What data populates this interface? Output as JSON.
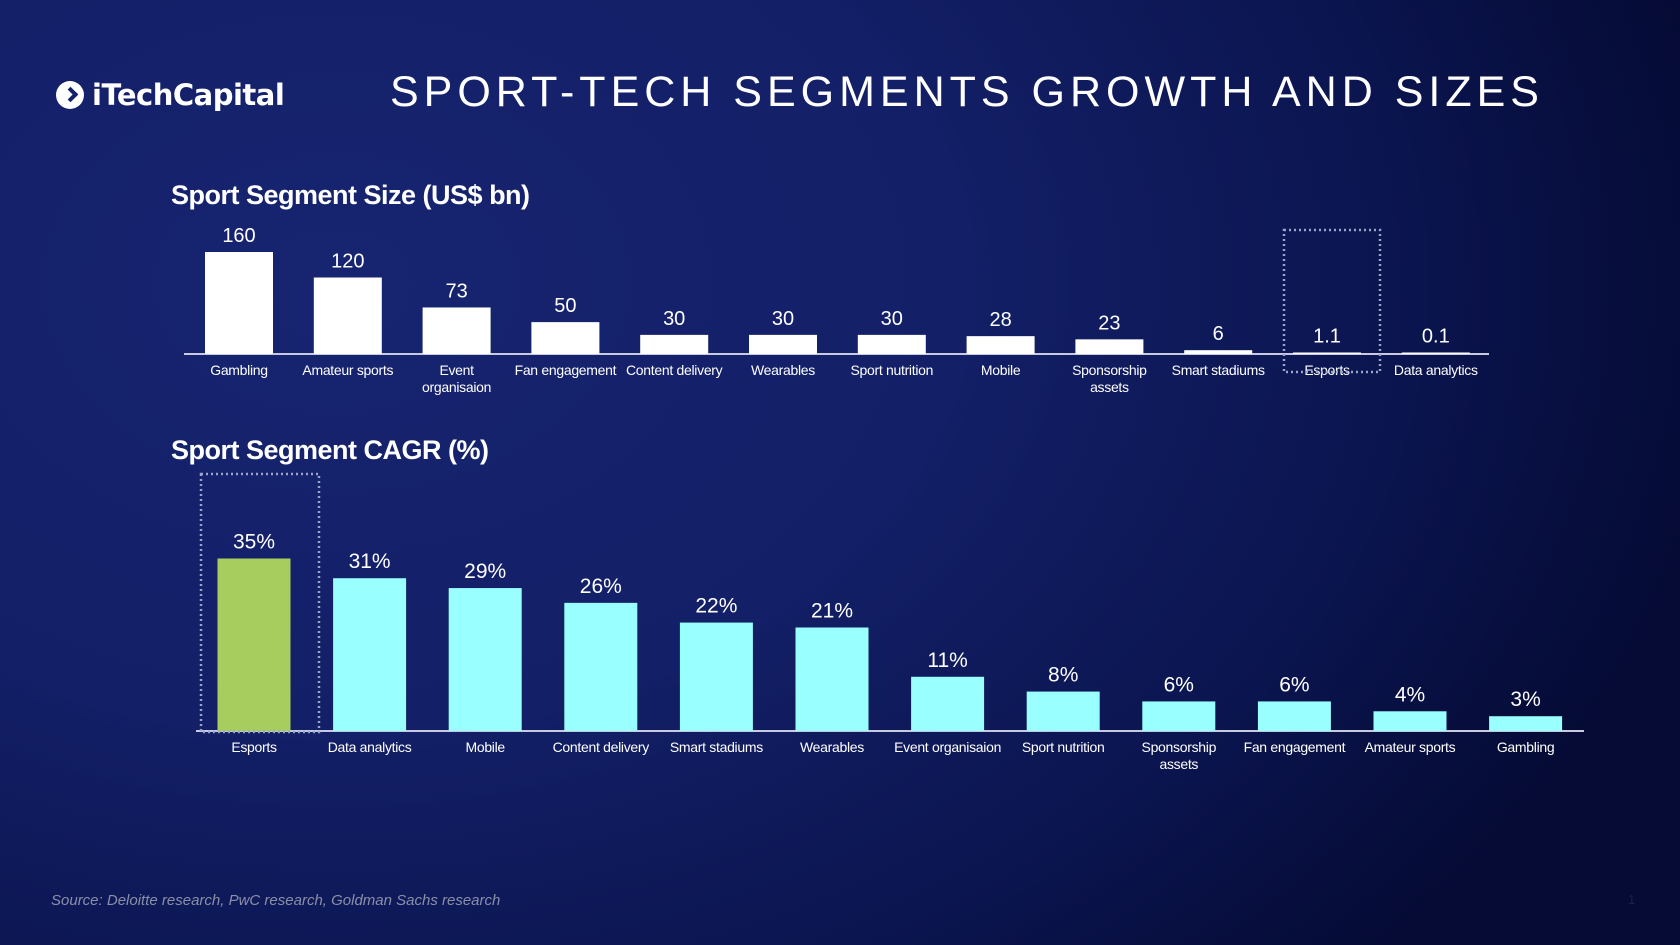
{
  "logo": {
    "text": "iTechCapital"
  },
  "title": "SPORT-TECH SEGMENTS GROWTH AND SIZES",
  "colors": {
    "bar_size": "#ffffff",
    "bar_cagr": "#99ffff",
    "bar_highlight": "#a6cd5e",
    "axis": "#c8cbe0",
    "highlight_box": "#9aa3c8"
  },
  "chart_data": [
    {
      "type": "bar",
      "title": "Sport Segment Size (US$ bn)",
      "categories": [
        "Gambling",
        "Amateur sports",
        "Event organisaion",
        "Fan engagement",
        "Content delivery",
        "Wearables",
        "Sport nutrition",
        "Mobile",
        "Sponsorship assets",
        "Smart stadiums",
        "Esports",
        "Data analytics"
      ],
      "values": [
        160,
        120,
        73,
        50,
        30,
        30,
        30,
        28,
        23,
        6,
        1.1,
        0.1
      ],
      "data_labels": [
        "160",
        "120",
        "73",
        "50",
        "30",
        "30",
        "30",
        "28",
        "23",
        "6",
        "1.1",
        "0.1"
      ],
      "highlighted": "Esports",
      "ylim": [
        0,
        160
      ]
    },
    {
      "type": "bar",
      "title": "Sport Segment CAGR (%)",
      "categories": [
        "Esports",
        "Data analytics",
        "Mobile",
        "Content delivery",
        "Smart stadiums",
        "Wearables",
        "Event organisaion",
        "Sport nutrition",
        "Sponsorship assets",
        "Fan engagement",
        "Amateur sports",
        "Gambling"
      ],
      "values": [
        35,
        31,
        29,
        26,
        22,
        21,
        11,
        8,
        6,
        6,
        4,
        3
      ],
      "data_labels": [
        "35%",
        "31%",
        "29%",
        "26%",
        "22%",
        "21%",
        "11%",
        "8%",
        "6%",
        "6%",
        "4%",
        "3%"
      ],
      "highlighted": "Esports",
      "ylim": [
        0,
        35
      ]
    }
  ],
  "footer": {
    "source": "Source: Deloitte research, PwC research, Goldman Sachs research",
    "page": "1"
  }
}
